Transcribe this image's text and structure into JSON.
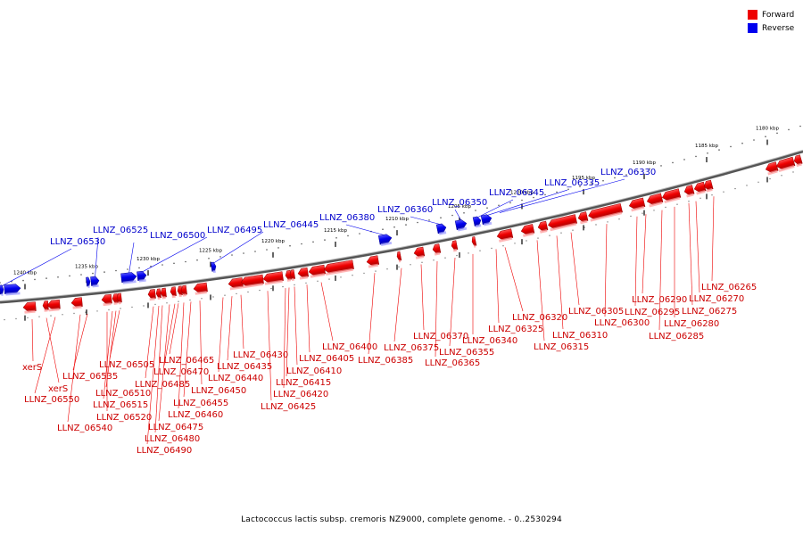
{
  "legend": {
    "forward_label": "Forward",
    "reverse_label": "Reverse",
    "forward_color": "#ee0000",
    "reverse_color": "#0000ee"
  },
  "caption": "Lactococcus lactis subsp. cremoris NZ9000, complete genome. - 0..2530294",
  "ruler": {
    "ticks": [
      "1240 kbp",
      "1235 kbp",
      "1230 kbp",
      "1225 kbp",
      "1220 kbp",
      "1215 kbp",
      "1210 kbp",
      "1205 kbp",
      "1200 kbp",
      "1195 kbp",
      "1190 kbp",
      "1185 kbp",
      "1180 kbp"
    ]
  },
  "reverse_genes": [
    "LLNZ_06530",
    "LLNZ_06525",
    "LLNZ_06500",
    "LLNZ_06495",
    "LLNZ_06445",
    "LLNZ_06380",
    "LLNZ_06360",
    "LLNZ_06350",
    "LLNZ_06345",
    "LLNZ_06335",
    "LLNZ_06330"
  ],
  "forward_genes": [
    "xerS",
    "xerS",
    "LLNZ_06550",
    "LLNZ_06540",
    "LLNZ_06535",
    "LLNZ_06520",
    "LLNZ_06515",
    "LLNZ_06510",
    "LLNZ_06505",
    "LLNZ_06490",
    "LLNZ_06485",
    "LLNZ_06480",
    "LLNZ_06475",
    "LLNZ_06470",
    "LLNZ_06465",
    "LLNZ_06460",
    "LLNZ_06455",
    "LLNZ_06450",
    "LLNZ_06440",
    "LLNZ_06435",
    "LLNZ_06430",
    "LLNZ_06425",
    "LLNZ_06420",
    "LLNZ_06415",
    "LLNZ_06410",
    "LLNZ_06405",
    "LLNZ_06400",
    "LLNZ_06385",
    "LLNZ_06375",
    "LLNZ_06370",
    "LLNZ_06365",
    "LLNZ_06355",
    "LLNZ_06340",
    "LLNZ_06325",
    "LLNZ_06320",
    "LLNZ_06315",
    "LLNZ_06310",
    "LLNZ_06305",
    "LLNZ_06300",
    "LLNZ_06295",
    "LLNZ_06290",
    "LLNZ_06285",
    "LLNZ_06280",
    "LLNZ_06275",
    "LLNZ_06270",
    "LLNZ_06265"
  ]
}
